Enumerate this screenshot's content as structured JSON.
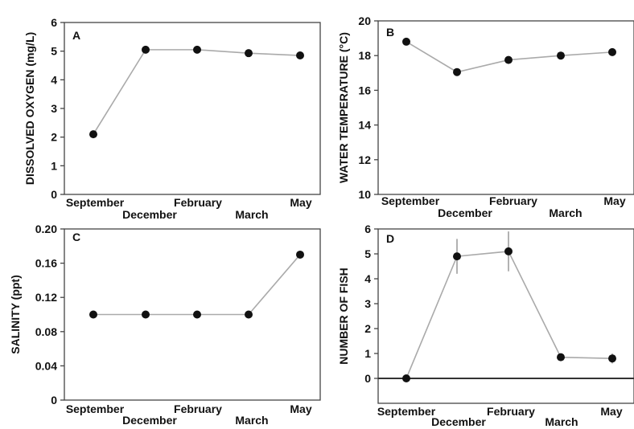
{
  "chart_data": [
    {
      "type": "line",
      "panel": "A",
      "categories": [
        "September",
        "December",
        "February",
        "March",
        "May"
      ],
      "values": [
        2.1,
        5.05,
        5.05,
        4.93,
        4.85
      ],
      "ylabel": "DISSOLVED OXYGEN (mg/L)",
      "ylim": [
        0,
        6
      ],
      "yticks": [
        "0",
        "1",
        "2",
        "3",
        "4",
        "5",
        "6"
      ]
    },
    {
      "type": "line",
      "panel": "B",
      "categories": [
        "September",
        "December",
        "February",
        "March",
        "May"
      ],
      "values": [
        18.8,
        17.05,
        17.75,
        18.0,
        18.2
      ],
      "ylabel": "WATER TEMPERATURE (°C)",
      "ylim": [
        10,
        20
      ],
      "yticks": [
        "10",
        "12",
        "14",
        "16",
        "18",
        "20"
      ]
    },
    {
      "type": "line",
      "panel": "C",
      "categories": [
        "September",
        "December",
        "February",
        "March",
        "May"
      ],
      "values": [
        0.1,
        0.1,
        0.1,
        0.1,
        0.17
      ],
      "ylabel": "SALINITY (ppt)",
      "ylim": [
        0,
        0.2
      ],
      "yticks": [
        "0",
        "0.04",
        "0.08",
        "0.12",
        "0.16",
        "0.20"
      ]
    },
    {
      "type": "line",
      "panel": "D",
      "categories": [
        "September",
        "December",
        "February",
        "March",
        "May"
      ],
      "values": [
        0,
        4.9,
        5.1,
        0.85,
        0.8
      ],
      "errors": [
        0,
        0.7,
        0.8,
        0.15,
        0.2
      ],
      "ylabel": "NUMBER OF FISH",
      "ylim": [
        -1,
        6
      ],
      "yticks": [
        "0",
        "1",
        "2",
        "3",
        "4",
        "5",
        "6"
      ],
      "zero_line": true
    }
  ]
}
